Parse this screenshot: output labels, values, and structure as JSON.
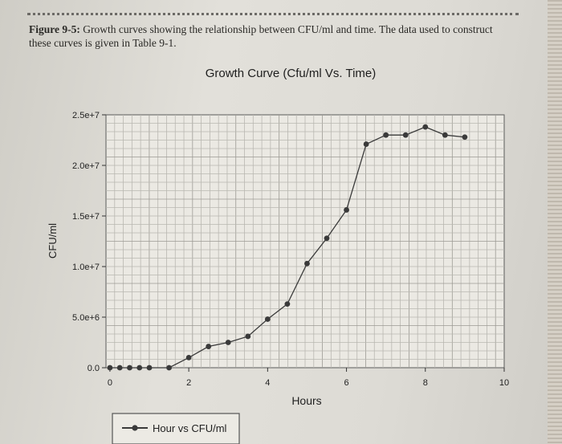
{
  "figure": {
    "label": "Figure 9-5:",
    "caption": "Growth curves showing the relationship between CFU/ml and time. The data used to construct these curves is given in Table 9-1."
  },
  "chart_data": {
    "type": "line",
    "title": "Growth Curve (Cfu/ml Vs. Time)",
    "xlabel": "Hours",
    "ylabel": "CFU/ml",
    "xlim": [
      -0.1,
      10
    ],
    "ylim": [
      0,
      25000000
    ],
    "x_ticks": [
      0,
      2,
      4,
      6,
      8,
      10
    ],
    "x_tick_labels": [
      "0",
      "2",
      "4",
      "6",
      "8",
      "10"
    ],
    "y_ticks": [
      0,
      5000000,
      10000000,
      15000000,
      20000000,
      25000000
    ],
    "y_tick_labels": [
      "0.0",
      "5.0e+6",
      "1.0e+7",
      "1.5e+7",
      "2.0e+7",
      "2.5e+7"
    ],
    "grid": true,
    "legend_position": "bottom-left",
    "series": [
      {
        "name": "Hour vs CFU/ml",
        "color": "#3a3a3a",
        "x": [
          0,
          0.25,
          0.5,
          0.75,
          1,
          1.5,
          2,
          2.5,
          3,
          3.5,
          4,
          4.5,
          5,
          5.5,
          6,
          6.5,
          7,
          7.5,
          8,
          8.5,
          9
        ],
        "y": [
          0,
          0,
          0,
          0,
          0,
          0,
          1000000,
          2100000,
          2500000,
          3100000,
          4800000,
          6300000,
          10300000,
          12800000,
          15600000,
          22100000,
          23000000,
          23000000,
          23800000,
          23000000,
          22800000
        ]
      }
    ]
  }
}
